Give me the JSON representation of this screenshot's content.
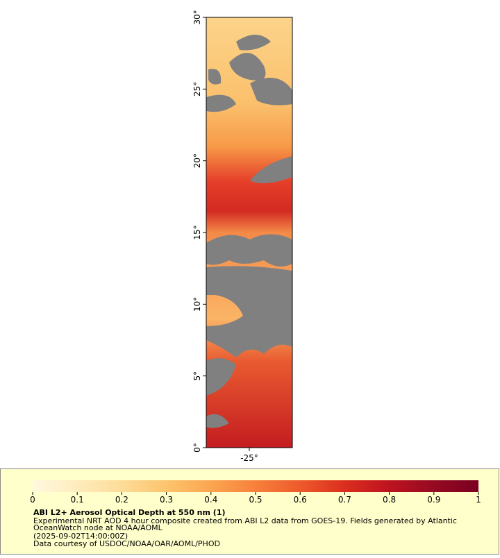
{
  "map": {
    "type": "map",
    "xlim": [
      -28,
      -22
    ],
    "ylim": [
      0,
      30
    ],
    "xticks": [
      {
        "value": -25,
        "label": "-25°"
      }
    ],
    "yticks": [
      {
        "value": 0,
        "label": "0°"
      },
      {
        "value": 5,
        "label": "5°"
      },
      {
        "value": 10,
        "label": "10°"
      },
      {
        "value": 15,
        "label": "15°"
      },
      {
        "value": 20,
        "label": "20°"
      },
      {
        "value": 25,
        "label": "25°"
      },
      {
        "value": 30,
        "label": "30°"
      }
    ],
    "land_color": "#808080"
  },
  "colorbar": {
    "lim": [
      0,
      1
    ],
    "ticks": [
      0,
      0.1,
      0.2,
      0.3,
      0.4,
      0.5,
      0.6,
      0.7,
      0.8,
      0.9,
      1
    ],
    "colors": [
      "#fff8e0",
      "#feecbc",
      "#fddc98",
      "#fcc46c",
      "#fba550",
      "#f7803c",
      "#ee5a2c",
      "#db2e1e",
      "#bd1320",
      "#950a22",
      "#7a0022"
    ]
  },
  "legend": {
    "title": "ABI L2+ Aerosol Optical Depth at 550 nm (1)",
    "lines": [
      "Experimental NRT AOD 4 hour composite created from ABI L2 data from GOES-19. Fields generated by Atlantic",
      "OceanWatch node at NOAA/AOML",
      "(2025-09-02T14:00:00Z)",
      "Data courtesy of USDOC/NOAA/OAR/AOML/PHOD"
    ]
  }
}
